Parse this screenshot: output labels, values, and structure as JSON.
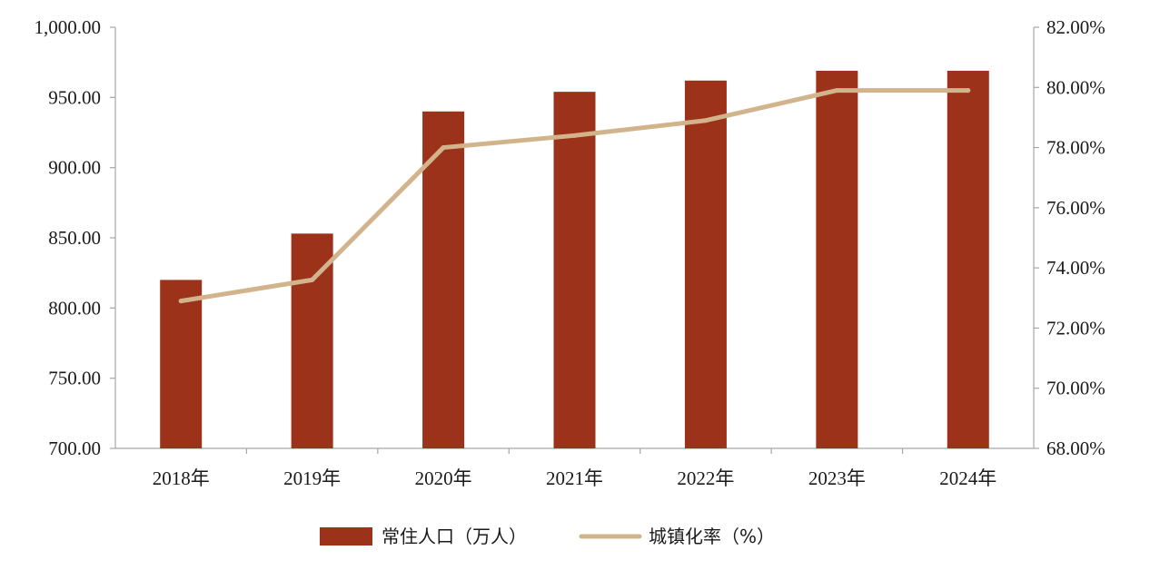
{
  "chart_data": {
    "type": "bar",
    "categories": [
      "2018年",
      "2019年",
      "2020年",
      "2021年",
      "2022年",
      "2023年",
      "2024年"
    ],
    "series": [
      {
        "name": "常住人口（万人）",
        "type": "bar",
        "axis": "left",
        "color": "#9b3219",
        "values": [
          820,
          853,
          940,
          954,
          962,
          969,
          969
        ]
      },
      {
        "name": "城镇化率（%）",
        "type": "line",
        "axis": "right",
        "color": "#d2b48c",
        "values": [
          72.9,
          73.6,
          78.0,
          78.4,
          78.9,
          79.9,
          79.9
        ]
      }
    ],
    "y_left": {
      "ylim": [
        700,
        1000
      ],
      "ticks": [
        700,
        750,
        800,
        850,
        900,
        950,
        1000
      ],
      "tick_labels": [
        "700.00",
        "750.00",
        "800.00",
        "850.00",
        "900.00",
        "950.00",
        "1,000.00"
      ]
    },
    "y_right": {
      "ylim": [
        68,
        82
      ],
      "ticks": [
        68,
        70,
        72,
        74,
        76,
        78,
        80,
        82
      ],
      "tick_labels": [
        "68.00%",
        "70.00%",
        "72.00%",
        "74.00%",
        "76.00%",
        "78.00%",
        "80.00%",
        "82.00%"
      ]
    },
    "grid": false,
    "legend_position": "bottom-center"
  }
}
